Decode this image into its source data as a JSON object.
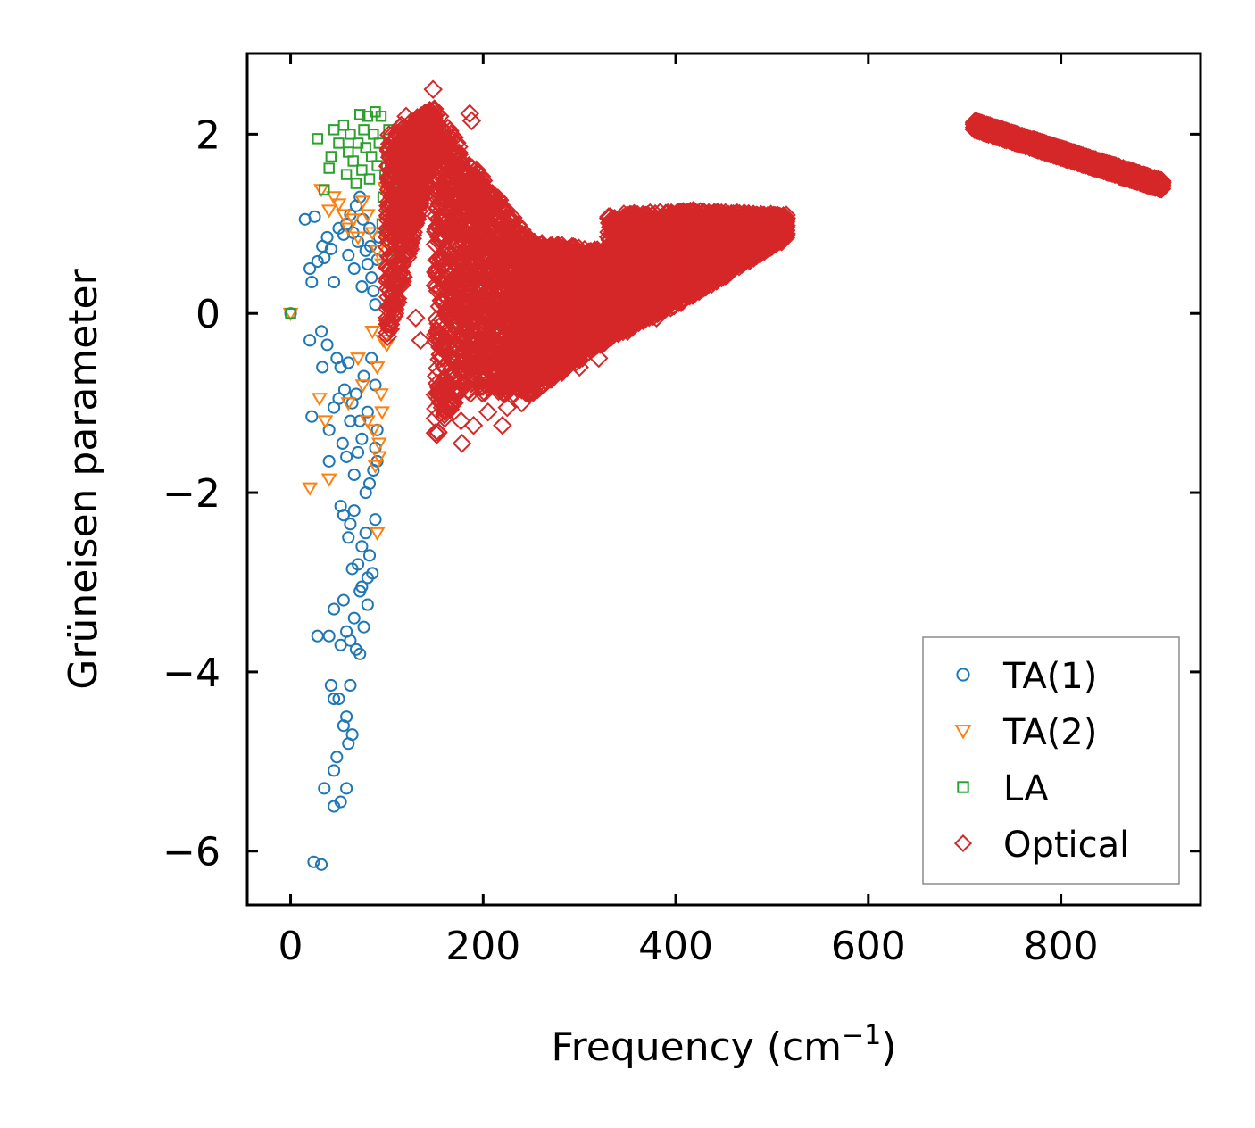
{
  "chart_data": {
    "type": "scatter",
    "title": "",
    "xlabel": "Frequency (cm",
    "xlabel_sup": "−1",
    "xlabel_close": ")",
    "ylabel": "Grüneisen parameter",
    "xlim": [
      -45,
      945
    ],
    "ylim": [
      -6.6,
      2.9
    ],
    "xticks": [
      0,
      200,
      400,
      600,
      800
    ],
    "xtick_labels": [
      "0",
      "200",
      "400",
      "600",
      "800"
    ],
    "yticks": [
      -6,
      -4,
      -2,
      0,
      2
    ],
    "ytick_labels": [
      "−6",
      "−4",
      "−2",
      "0",
      "2"
    ],
    "legend_position": "lower-right",
    "series": [
      {
        "name": "TA(1)",
        "label": "TA(1)",
        "marker": "circle",
        "color": "#1f77b4",
        "points": [
          [
            0,
            0.0
          ],
          [
            15,
            1.05
          ],
          [
            20,
            0.5
          ],
          [
            22,
            0.35
          ],
          [
            25,
            1.08
          ],
          [
            28,
            0.58
          ],
          [
            33,
            0.75
          ],
          [
            35,
            0.62
          ],
          [
            38,
            0.85
          ],
          [
            42,
            0.72
          ],
          [
            45,
            0.35
          ],
          [
            50,
            0.95
          ],
          [
            55,
            0.88
          ],
          [
            58,
            1.0
          ],
          [
            62,
            1.1
          ],
          [
            65,
            0.9
          ],
          [
            68,
            1.2
          ],
          [
            70,
            0.8
          ],
          [
            72,
            1.3
          ],
          [
            75,
            1.05
          ],
          [
            78,
            0.7
          ],
          [
            80,
            0.55
          ],
          [
            82,
            0.95
          ],
          [
            84,
            0.4
          ],
          [
            86,
            0.25
          ],
          [
            88,
            0.1
          ],
          [
            90,
            0.6
          ],
          [
            92,
            0.85
          ],
          [
            60,
            0.65
          ],
          [
            66,
            0.5
          ],
          [
            74,
            0.3
          ],
          [
            83,
            0.75
          ],
          [
            20,
            -0.3
          ],
          [
            32,
            -0.2
          ],
          [
            33,
            -0.6
          ],
          [
            38,
            -0.35
          ],
          [
            48,
            -0.5
          ],
          [
            52,
            -0.6
          ],
          [
            56,
            -0.85
          ],
          [
            60,
            -0.55
          ],
          [
            64,
            -1.0
          ],
          [
            68,
            -0.9
          ],
          [
            72,
            -1.2
          ],
          [
            76,
            -0.7
          ],
          [
            80,
            -1.1
          ],
          [
            84,
            -0.5
          ],
          [
            88,
            -0.8
          ],
          [
            90,
            -1.3
          ],
          [
            22,
            -1.15
          ],
          [
            40,
            -1.3
          ],
          [
            45,
            -1.05
          ],
          [
            50,
            -0.95
          ],
          [
            54,
            -1.45
          ],
          [
            58,
            -1.6
          ],
          [
            62,
            -1.2
          ],
          [
            66,
            -1.8
          ],
          [
            70,
            -1.55
          ],
          [
            74,
            -1.4
          ],
          [
            78,
            -2.0
          ],
          [
            82,
            -1.9
          ],
          [
            86,
            -1.75
          ],
          [
            88,
            -1.5
          ],
          [
            90,
            -1.65
          ],
          [
            40,
            -1.65
          ],
          [
            52,
            -2.15
          ],
          [
            55,
            -2.25
          ],
          [
            60,
            -2.5
          ],
          [
            62,
            -2.35
          ],
          [
            66,
            -2.2
          ],
          [
            70,
            -2.8
          ],
          [
            74,
            -2.6
          ],
          [
            78,
            -2.45
          ],
          [
            82,
            -2.7
          ],
          [
            85,
            -2.9
          ],
          [
            88,
            -2.3
          ],
          [
            80,
            -2.95
          ],
          [
            72,
            -3.1
          ],
          [
            64,
            -2.85
          ],
          [
            28,
            -3.6
          ],
          [
            40,
            -3.6
          ],
          [
            45,
            -3.3
          ],
          [
            52,
            -3.7
          ],
          [
            55,
            -3.2
          ],
          [
            58,
            -3.55
          ],
          [
            62,
            -3.65
          ],
          [
            66,
            -3.4
          ],
          [
            68,
            -3.75
          ],
          [
            72,
            -3.8
          ],
          [
            76,
            -3.5
          ],
          [
            80,
            -3.25
          ],
          [
            74,
            -3.05
          ],
          [
            42,
            -4.15
          ],
          [
            45,
            -4.3
          ],
          [
            50,
            -4.3
          ],
          [
            55,
            -4.6
          ],
          [
            58,
            -4.5
          ],
          [
            62,
            -4.15
          ],
          [
            64,
            -4.7
          ],
          [
            60,
            -4.8
          ],
          [
            48,
            -4.95
          ],
          [
            45,
            -5.1
          ],
          [
            35,
            -5.3
          ],
          [
            58,
            -5.3
          ],
          [
            45,
            -5.5
          ],
          [
            52,
            -5.45
          ],
          [
            24,
            -6.12
          ],
          [
            32,
            -6.15
          ]
        ]
      },
      {
        "name": "TA(2)",
        "label": "TA(2)",
        "marker": "triangle-down",
        "color": "#ff7f0e",
        "points": [
          [
            0,
            0.0
          ],
          [
            20,
            -1.95
          ],
          [
            30,
            -0.95
          ],
          [
            32,
            1.38
          ],
          [
            40,
            1.15
          ],
          [
            45,
            1.3
          ],
          [
            50,
            1.22
          ],
          [
            55,
            1.1
          ],
          [
            60,
            0.95
          ],
          [
            65,
            1.05
          ],
          [
            70,
            0.85
          ],
          [
            75,
            1.25
          ],
          [
            80,
            1.1
          ],
          [
            85,
            0.9
          ],
          [
            90,
            0.7
          ],
          [
            95,
            0.55
          ],
          [
            98,
            1.4
          ],
          [
            100,
            0.8
          ],
          [
            102,
            1.0
          ],
          [
            104,
            0.35
          ],
          [
            36,
            -1.2
          ],
          [
            40,
            -1.85
          ],
          [
            60,
            -1.0
          ],
          [
            70,
            -0.5
          ],
          [
            75,
            -0.8
          ],
          [
            80,
            -1.2
          ],
          [
            85,
            -0.2
          ],
          [
            90,
            -0.6
          ],
          [
            92,
            -1.45
          ],
          [
            94,
            -0.9
          ],
          [
            96,
            -0.3
          ],
          [
            98,
            -0.1
          ],
          [
            100,
            -0.35
          ],
          [
            88,
            -1.7
          ],
          [
            90,
            -2.45
          ],
          [
            95,
            -1.1
          ],
          [
            86,
            -1.3
          ],
          [
            92,
            -1.6
          ]
        ]
      },
      {
        "name": "LA",
        "label": "LA",
        "marker": "square",
        "color": "#2ca02c",
        "points": [
          [
            0,
            0.0
          ],
          [
            28,
            1.95
          ],
          [
            35,
            1.38
          ],
          [
            40,
            1.62
          ],
          [
            42,
            1.75
          ],
          [
            45,
            2.05
          ],
          [
            50,
            1.9
          ],
          [
            55,
            2.1
          ],
          [
            58,
            1.55
          ],
          [
            60,
            1.8
          ],
          [
            62,
            2.0
          ],
          [
            65,
            1.7
          ],
          [
            68,
            1.45
          ],
          [
            70,
            1.9
          ],
          [
            72,
            2.22
          ],
          [
            74,
            1.6
          ],
          [
            76,
            2.05
          ],
          [
            78,
            1.85
          ],
          [
            80,
            2.2
          ],
          [
            82,
            1.5
          ],
          [
            84,
            1.75
          ],
          [
            86,
            2.0
          ],
          [
            88,
            2.25
          ],
          [
            90,
            1.65
          ],
          [
            92,
            1.9
          ],
          [
            94,
            2.2
          ],
          [
            96,
            1.3
          ],
          [
            98,
            1.55
          ],
          [
            100,
            1.8
          ],
          [
            102,
            2.05
          ],
          [
            104,
            1.0
          ],
          [
            106,
            1.4
          ],
          [
            108,
            0.3
          ],
          [
            110,
            0.1
          ],
          [
            112,
            1.6
          ],
          [
            114,
            0.85
          ],
          [
            105,
            0.6
          ],
          [
            100,
            1.2
          ],
          [
            95,
            1.0
          ]
        ]
      },
      {
        "name": "Optical",
        "label": "Optical",
        "marker": "diamond",
        "color": "#d62728",
        "segments": [
          {
            "x": [
              100,
              150
            ],
            "y_low": [
              -0.4,
              1.9
            ],
            "y_high": [
              2.0,
              2.3
            ]
          },
          {
            "x": [
              150,
              180
            ],
            "y_low": [
              -1.4,
              -0.8
            ],
            "y_high": [
              2.3,
              1.8
            ]
          },
          {
            "x": [
              180,
              250
            ],
            "y_low": [
              -0.9,
              -0.9
            ],
            "y_high": [
              1.8,
              0.8
            ]
          },
          {
            "x": [
              250,
              330
            ],
            "y_low": [
              -0.9,
              -0.3
            ],
            "y_high": [
              0.8,
              0.7
            ]
          },
          {
            "x": [
              330,
              420
            ],
            "y_low": [
              -0.3,
              0.2
            ],
            "y_high": [
              1.1,
              1.15
            ]
          },
          {
            "x": [
              420,
              515
            ],
            "y_low": [
              0.2,
              0.85
            ],
            "y_high": [
              1.15,
              1.1
            ]
          },
          {
            "x": [
              710,
              905
            ],
            "y_low": [
              2.05,
              1.38
            ],
            "y_high": [
              2.15,
              1.48
            ]
          }
        ],
        "outliers": [
          [
            148,
            2.5
          ],
          [
            186,
            2.23
          ],
          [
            188,
            2.15
          ],
          [
            130,
            -0.05
          ],
          [
            135,
            -0.3
          ],
          [
            160,
            -0.6
          ],
          [
            170,
            -1.0
          ],
          [
            177,
            -1.2
          ],
          [
            178,
            -1.45
          ],
          [
            190,
            -1.25
          ],
          [
            205,
            -1.1
          ],
          [
            220,
            -1.25
          ],
          [
            225,
            -1.05
          ],
          [
            240,
            -1.0
          ],
          [
            270,
            0.72
          ],
          [
            280,
            0.5
          ],
          [
            300,
            -0.6
          ],
          [
            320,
            -0.5
          ],
          [
            350,
            -0.2
          ],
          [
            380,
            -0.05
          ],
          [
            430,
            0.3
          ],
          [
            510,
            0.8
          ],
          [
            120,
            2.2
          ],
          [
            115,
            2.1
          ],
          [
            112,
            1.9
          ],
          [
            140,
            1.85
          ]
        ]
      }
    ]
  }
}
